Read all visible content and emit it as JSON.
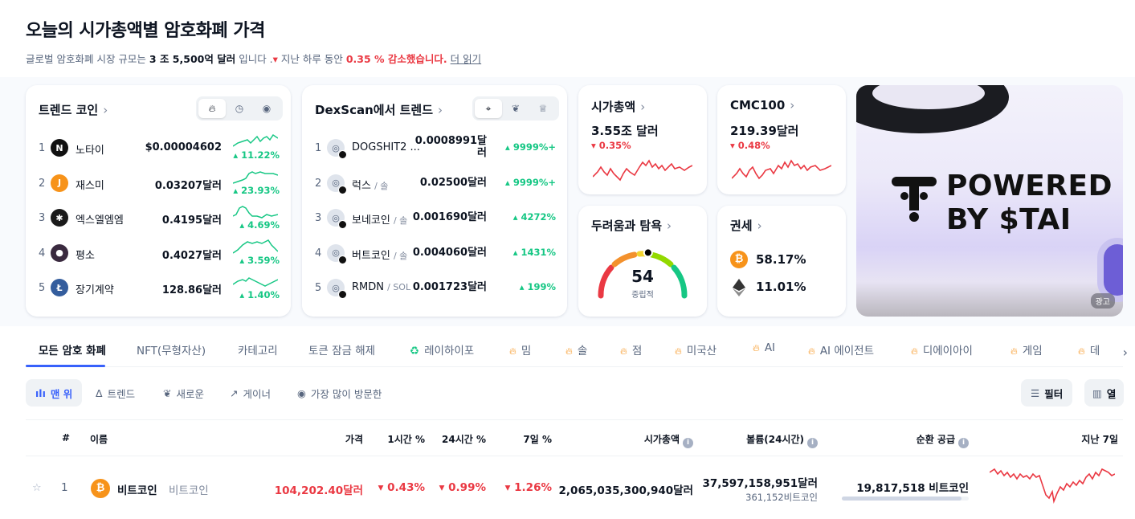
{
  "header": {
    "title": "오늘의 시가총액별 암호화폐 가격",
    "sub_prefix": "글로벌 암호화폐 시장 규모는",
    "sub_cap": "3 조 5,500억 달러",
    "sub_mid": "입니다 .",
    "sub_mid2": "지난 하루 동안",
    "sub_change": "0.35 % 감소했습니다.",
    "read_more": "더 읽기"
  },
  "trending": {
    "title": "트렌드 코인",
    "items": [
      {
        "rank": "1",
        "name": "노타이",
        "price": "$0.00004602",
        "change": "11.22%",
        "icon": "notai-icon",
        "icon_char": "N",
        "color": "#111111"
      },
      {
        "rank": "2",
        "name": "재스미",
        "price": "0.03207달러",
        "change": "23.93%",
        "icon": "jasmy-icon",
        "icon_char": "J",
        "color": "#f7931a"
      },
      {
        "rank": "3",
        "name": "엑스엘엠엠",
        "price": "0.4195달러",
        "change": "4.69%",
        "icon": "xlm-icon",
        "icon_char": "✱",
        "color": "#1b1b1b"
      },
      {
        "rank": "4",
        "name": "평소",
        "price": "0.4027달러",
        "change": "3.59%",
        "icon": "usual-icon",
        "icon_char": "●",
        "color": "#3a2a3f"
      },
      {
        "rank": "5",
        "name": "장기계약",
        "price": "128.86달러",
        "change": "1.40%",
        "icon": "litecoin-icon",
        "icon_char": "Ł",
        "color": "#345d9d"
      }
    ]
  },
  "dexscan": {
    "title": "DexScan에서 트렌드",
    "items": [
      {
        "rank": "1",
        "name": "DOGSHIT2 ...",
        "chain": "",
        "price_l1": "0.0008991달",
        "price_l2": "러",
        "change": "9999%+"
      },
      {
        "rank": "2",
        "name": "럭스",
        "chain": "/ 솔",
        "price_l1": "0.02500달러",
        "price_l2": "",
        "change": "9999%+"
      },
      {
        "rank": "3",
        "name": "보네코인",
        "chain": "/ 솔",
        "price_l1": "0.001690달러",
        "price_l2": "",
        "change": "4272%"
      },
      {
        "rank": "4",
        "name": "버트코인",
        "chain": "/ 솔",
        "price_l1": "0.004060달러",
        "price_l2": "",
        "change": "1431%"
      },
      {
        "rank": "5",
        "name": "RMDN",
        "chain": "/ SOL",
        "price_l1": "0.001723달러",
        "price_l2": "",
        "change": "199%"
      }
    ]
  },
  "market_cap": {
    "title": "시가총액",
    "value": "3.55조 달러",
    "change": "0.35%"
  },
  "cmc100": {
    "title": "CMC100",
    "value": "219.39달러",
    "change": "0.48%"
  },
  "fear_greed": {
    "title": "두려움과 탐욕",
    "value": "54",
    "label": "중립적",
    "level": 54
  },
  "dominance": {
    "title": "권세",
    "btc": "58.17%",
    "eth": "11.01%"
  },
  "ad": {
    "line1": "POWERED",
    "line2": "BY $TAI",
    "tag": "광고"
  },
  "tabs": [
    {
      "label": "모든 암호 화폐",
      "kind": "plain"
    },
    {
      "label": "NFT(무형자산)",
      "kind": "plain"
    },
    {
      "label": "카테고리",
      "kind": "plain"
    },
    {
      "label": "토큰 잠금 해제",
      "kind": "plain"
    },
    {
      "label": "레이하이포",
      "kind": "recycle"
    },
    {
      "label": "밈",
      "kind": "fire"
    },
    {
      "label": "솔",
      "kind": "fire"
    },
    {
      "label": "점",
      "kind": "fire"
    },
    {
      "label": "미국산",
      "kind": "fire"
    },
    {
      "label": "AI",
      "kind": "fire"
    },
    {
      "label": "AI 에이전트",
      "kind": "fire"
    },
    {
      "label": "디에이아이",
      "kind": "fire"
    },
    {
      "label": "게임",
      "kind": "fire"
    },
    {
      "label": "데",
      "kind": "fire"
    }
  ],
  "filters": {
    "top": "맨 위",
    "trend": "트렌드",
    "new": "새로운",
    "gainer": "게이너",
    "visited": "가장 많이 방문한",
    "filter": "필터",
    "columns": "열"
  },
  "table": {
    "headers": {
      "rank": "#",
      "name": "이름",
      "price": "가격",
      "h1": "1시간 %",
      "h24": "24시간 %",
      "d7": "7일 %",
      "mcap": "시가총액",
      "volume": "볼륨(24시간)",
      "supply": "순환 공급",
      "last7": "지난 7일"
    },
    "rows": [
      {
        "rank": "1",
        "name": "비트코인",
        "symbol": "비트코인",
        "price": "104,202.40달러",
        "h1": "0.43%",
        "h24": "0.99%",
        "d7": "1.26%",
        "mcap": "2,065,035,300,940달러",
        "volume": "37,597,158,951달러",
        "volume_coin": "361,152비트코인",
        "supply": "19,817,518 비트코인",
        "supply_fraction": 0.944
      }
    ]
  },
  "colors": {
    "positive": "#16c784",
    "negative": "#ea3943",
    "accent": "#3861fb",
    "btc": "#f7931a"
  }
}
